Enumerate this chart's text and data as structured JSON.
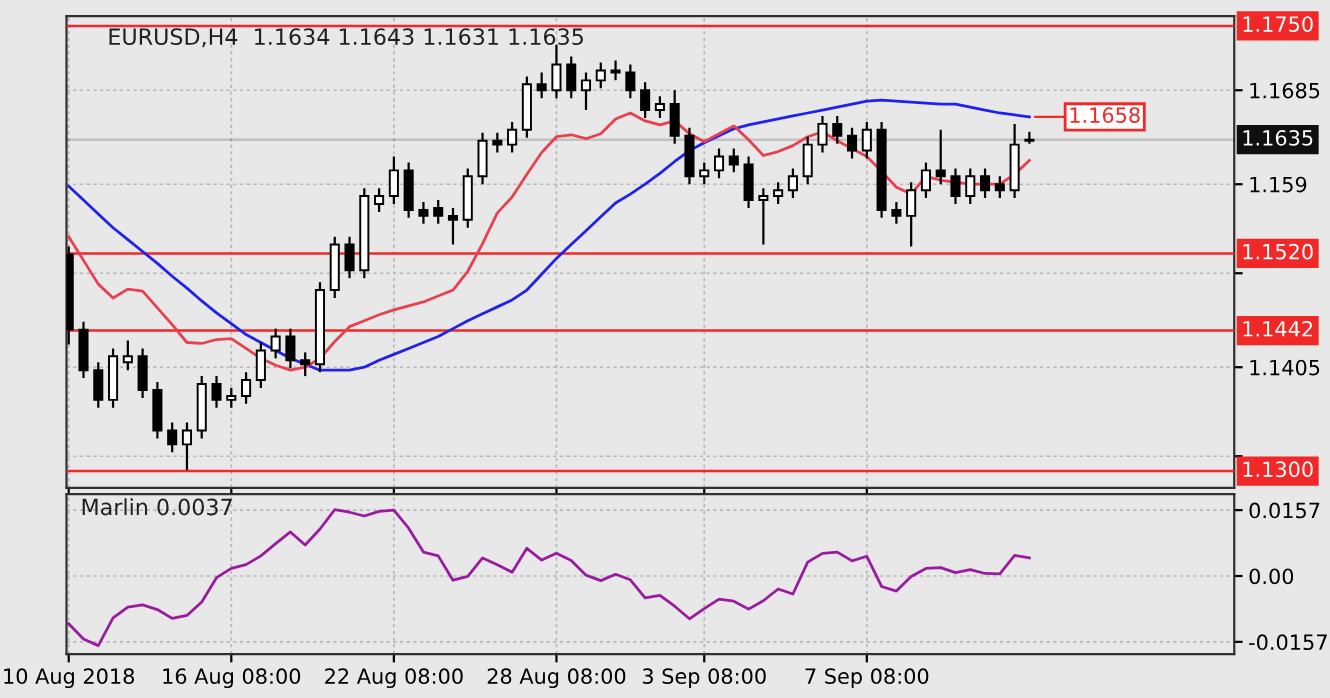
{
  "chart_data": [
    {
      "type": "candlestick",
      "title": "EURUSD,H4  1.1634 1.1643 1.1631 1.1635",
      "categories": [
        null,
        null,
        null,
        null,
        null,
        null,
        null,
        null,
        null,
        null,
        null,
        null,
        null,
        null,
        null,
        null,
        null,
        null,
        null,
        null,
        null,
        null,
        null,
        null,
        null,
        null,
        null,
        null,
        null,
        null,
        null,
        null,
        null,
        null,
        null,
        null,
        null,
        null,
        null,
        null,
        null,
        null,
        null,
        null,
        null,
        null,
        null,
        null,
        null,
        null,
        null,
        null,
        null,
        null,
        null,
        null,
        null,
        null,
        null,
        null,
        null,
        null,
        null,
        null,
        null,
        null
      ],
      "ohlc": [
        [
          1.1519,
          1.1527,
          1.1428,
          1.1443
        ],
        [
          1.1443,
          1.1451,
          1.1394,
          1.1402
        ],
        [
          1.1402,
          1.141,
          1.1364,
          1.1372
        ],
        [
          1.1372,
          1.1424,
          1.1364,
          1.1416
        ],
        [
          1.141,
          1.1432,
          1.1402,
          1.1416
        ],
        [
          1.1416,
          1.1424,
          1.1374,
          1.1382
        ],
        [
          1.1382,
          1.139,
          1.1333,
          1.1341
        ],
        [
          1.1341,
          1.1349,
          1.1319,
          1.1327
        ],
        [
          1.1327,
          1.1349,
          1.1301,
          1.1341
        ],
        [
          1.1341,
          1.1396,
          1.1333,
          1.1388
        ],
        [
          1.1388,
          1.1396,
          1.1364,
          1.1372
        ],
        [
          1.1372,
          1.1384,
          1.1364,
          1.1376
        ],
        [
          1.1376,
          1.14,
          1.1368,
          1.1392
        ],
        [
          1.1392,
          1.143,
          1.1384,
          1.1422
        ],
        [
          1.1422,
          1.1444,
          1.1414,
          1.1436
        ],
        [
          1.1436,
          1.1444,
          1.1404,
          1.1412
        ],
        [
          1.1412,
          1.142,
          1.1396,
          1.1408
        ],
        [
          1.1408,
          1.1491,
          1.14,
          1.1483
        ],
        [
          1.1483,
          1.1537,
          1.1475,
          1.1529
        ],
        [
          1.1529,
          1.1537,
          1.1495,
          1.1503
        ],
        [
          1.1503,
          1.1586,
          1.1495,
          1.1578
        ],
        [
          1.157,
          1.1586,
          1.1562,
          1.1578
        ],
        [
          1.1578,
          1.1618,
          1.157,
          1.1604
        ],
        [
          1.1604,
          1.1612,
          1.1556,
          1.1564
        ],
        [
          1.1564,
          1.1572,
          1.155,
          1.1558
        ],
        [
          1.1566,
          1.1574,
          1.155,
          1.1558
        ],
        [
          1.1558,
          1.1566,
          1.1529,
          1.1554
        ],
        [
          1.1554,
          1.1606,
          1.1546,
          1.1598
        ],
        [
          1.1598,
          1.1642,
          1.159,
          1.1634
        ],
        [
          1.1634,
          1.1642,
          1.1622,
          1.163
        ],
        [
          1.163,
          1.1653,
          1.1622,
          1.1645
        ],
        [
          1.1645,
          1.1699,
          1.1637,
          1.1691
        ],
        [
          1.1691,
          1.1703,
          1.1677,
          1.1685
        ],
        [
          1.1685,
          1.1731,
          1.1677,
          1.1711
        ],
        [
          1.1711,
          1.1719,
          1.1677,
          1.1685
        ],
        [
          1.1685,
          1.1703,
          1.1665,
          1.1695
        ],
        [
          1.1695,
          1.1713,
          1.1687,
          1.1705
        ],
        [
          1.1705,
          1.1715,
          1.1695,
          1.1703
        ],
        [
          1.1703,
          1.1711,
          1.1677,
          1.1685
        ],
        [
          1.1685,
          1.1693,
          1.1657,
          1.1665
        ],
        [
          1.1665,
          1.1679,
          1.1657,
          1.1671
        ],
        [
          1.1671,
          1.1685,
          1.1631,
          1.1639
        ],
        [
          1.1639,
          1.1647,
          1.159,
          1.1598
        ],
        [
          1.1598,
          1.1612,
          1.159,
          1.1604
        ],
        [
          1.1604,
          1.1626,
          1.1596,
          1.1618
        ],
        [
          1.1618,
          1.1626,
          1.1602,
          1.161
        ],
        [
          1.161,
          1.1618,
          1.1566,
          1.1574
        ],
        [
          1.1574,
          1.1586,
          1.1529,
          1.1578
        ],
        [
          1.1578,
          1.1592,
          1.157,
          1.1584
        ],
        [
          1.1584,
          1.1606,
          1.1576,
          1.1598
        ],
        [
          1.1598,
          1.1638,
          1.159,
          1.163
        ],
        [
          1.163,
          1.1659,
          1.1622,
          1.1651
        ],
        [
          1.1651,
          1.1659,
          1.1631,
          1.1639
        ],
        [
          1.1639,
          1.1647,
          1.1616,
          1.1624
        ],
        [
          1.1624,
          1.1653,
          1.1616,
          1.1645
        ],
        [
          1.1645,
          1.1653,
          1.1556,
          1.1564
        ],
        [
          1.1564,
          1.1572,
          1.155,
          1.1558
        ],
        [
          1.1558,
          1.1592,
          1.1527,
          1.1584
        ],
        [
          1.1584,
          1.1612,
          1.1576,
          1.1604
        ],
        [
          1.1604,
          1.1645,
          1.159,
          1.1598
        ],
        [
          1.1598,
          1.1606,
          1.157,
          1.1578
        ],
        [
          1.1578,
          1.1606,
          1.157,
          1.1598
        ],
        [
          1.1598,
          1.1606,
          1.1576,
          1.1584
        ],
        [
          1.159,
          1.1598,
          1.1576,
          1.1584
        ],
        [
          1.1584,
          1.1651,
          1.1576,
          1.163
        ],
        [
          1.1634,
          1.1643,
          1.1631,
          1.1635
        ]
      ],
      "series": [
        {
          "type": "line",
          "color": "#2020f0",
          "values": [
            1.1588,
            1.1574,
            1.156,
            1.1546,
            1.1534,
            1.1522,
            1.151,
            1.1497,
            1.1485,
            1.1472,
            1.146,
            1.1449,
            1.1438,
            1.143,
            1.1422,
            1.1414,
            1.1408,
            1.1402,
            1.1402,
            1.1402,
            1.1405,
            1.1412,
            1.1418,
            1.1424,
            1.143,
            1.1436,
            1.1444,
            1.1452,
            1.1459,
            1.1466,
            1.1473,
            1.1483,
            1.1499,
            1.1515,
            1.1529,
            1.1543,
            1.1557,
            1.1571,
            1.158,
            1.159,
            1.1601,
            1.1613,
            1.1624,
            1.1632,
            1.1639,
            1.1646,
            1.165,
            1.1653,
            1.1656,
            1.1659,
            1.1662,
            1.1665,
            1.1668,
            1.1671,
            1.1674,
            1.1675,
            1.1674,
            1.1673,
            1.1672,
            1.1671,
            1.1671,
            1.1668,
            1.1665,
            1.1662,
            1.166,
            1.1658
          ]
        },
        {
          "type": "line",
          "color": "#e8404f",
          "values": [
            1.1537,
            1.1513,
            1.1489,
            1.1475,
            1.1484,
            1.1482,
            1.1465,
            1.1448,
            1.143,
            1.1429,
            1.1433,
            1.1434,
            1.1424,
            1.1414,
            1.1407,
            1.1402,
            1.1405,
            1.1414,
            1.1431,
            1.1446,
            1.1452,
            1.1458,
            1.1463,
            1.1467,
            1.1471,
            1.1477,
            1.1483,
            1.1502,
            1.153,
            1.1561,
            1.1577,
            1.16,
            1.1622,
            1.1638,
            1.164,
            1.1636,
            1.1641,
            1.1656,
            1.1662,
            1.1654,
            1.165,
            1.1654,
            1.1641,
            1.1633,
            1.1641,
            1.1649,
            1.1635,
            1.1619,
            1.1623,
            1.1629,
            1.1638,
            1.1643,
            1.1634,
            1.1626,
            1.1618,
            1.1603,
            1.1587,
            1.158,
            1.1598,
            1.1594,
            1.1592,
            1.159,
            1.159,
            1.159,
            1.16,
            1.1614
          ]
        }
      ],
      "ylim": [
        1.1283,
        1.176
      ],
      "yticks": [
        1.1685,
        1.159,
        {
          "value": 1.15,
          "label": null
        },
        1.1405,
        {
          "value": 1.1315,
          "label": null
        }
      ],
      "tick_labels": "y",
      "grid": true,
      "ref_lines": [
        {
          "axis": "y",
          "value": 1.175,
          "label": "1.1750",
          "color": "#f02828"
        },
        {
          "axis": "y",
          "value": 1.152,
          "label": "1.1520",
          "color": "#f02828"
        },
        {
          "axis": "y",
          "value": 1.1442,
          "label": "1.1442",
          "color": "#f02828"
        },
        {
          "axis": "y",
          "value": 1.13,
          "label": "1.1300",
          "color": "#f02828"
        },
        {
          "axis": "y",
          "value": 1.1635,
          "label": "1.1635",
          "color": "#101010"
        }
      ],
      "annotations": [
        "1.1658"
      ]
    },
    {
      "type": "line",
      "title": "Marlin 0.0037",
      "color": "#9a1aa0",
      "categories": [
        "10 Aug 2018",
        null,
        null,
        null,
        null,
        null,
        null,
        null,
        null,
        null,
        null,
        "16 Aug 08:00",
        null,
        null,
        null,
        null,
        null,
        null,
        null,
        null,
        null,
        null,
        "22 Aug 08:00",
        null,
        null,
        null,
        null,
        null,
        null,
        null,
        null,
        null,
        null,
        "28 Aug 08:00",
        null,
        null,
        null,
        null,
        null,
        null,
        null,
        null,
        null,
        "3 Sep 08:00",
        null,
        null,
        null,
        null,
        null,
        null,
        null,
        null,
        null,
        null,
        "7 Sep 08:00",
        null,
        null,
        null,
        null,
        null,
        null,
        null,
        null,
        null,
        null,
        null
      ],
      "values": [
        -0.0114,
        -0.015,
        -0.0166,
        -0.01,
        -0.0074,
        -0.0069,
        -0.008,
        -0.0101,
        -0.0094,
        -0.0062,
        -0.0004,
        0.0018,
        0.0027,
        0.0048,
        0.0077,
        0.0105,
        0.0074,
        0.0112,
        0.0158,
        0.0152,
        0.0143,
        0.0154,
        0.0157,
        0.0114,
        0.0057,
        0.0048,
        -0.001,
        -0.0001,
        0.0043,
        0.0027,
        0.0009,
        0.0066,
        0.0038,
        0.0054,
        0.0037,
        0.0002,
        -0.0011,
        0.0004,
        -0.0009,
        -0.0052,
        -0.0046,
        -0.0072,
        -0.0102,
        -0.0078,
        -0.0055,
        -0.006,
        -0.0079,
        -0.0059,
        -0.0031,
        -0.0043,
        0.0033,
        0.0054,
        0.0057,
        0.0036,
        0.0047,
        -0.0025,
        -0.0036,
        -0.0001,
        0.0018,
        0.002,
        0.0008,
        0.0015,
        0.0006,
        0.0005,
        0.0049,
        0.0043
      ],
      "ylim": [
        -0.0186,
        0.0195
      ],
      "yticks": [
        0.0157,
        {
          "value": 0,
          "label": "0.00"
        },
        -0.0157
      ],
      "grid": true
    }
  ]
}
